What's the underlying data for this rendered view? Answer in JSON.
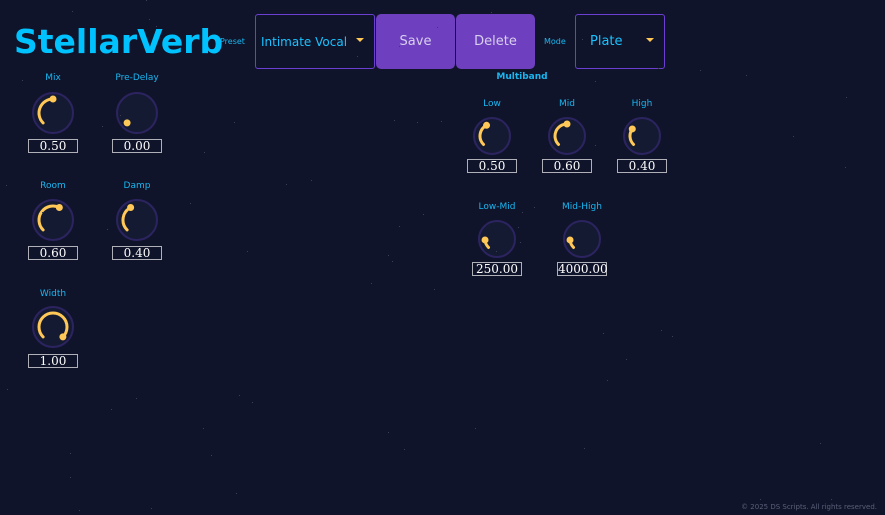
{
  "app_title": "StellarVerb",
  "header": {
    "preset_label": "Preset",
    "preset_value": "Intimate Vocal",
    "save_label": "Save",
    "delete_label": "Delete",
    "mode_label": "Mode",
    "mode_value": "Plate"
  },
  "colors": {
    "accent": "#00c2ff",
    "button": "#6e3fbf",
    "knob_arc": "#ffc857"
  },
  "knobs": [
    {
      "label": "Mix",
      "value": "0.50",
      "fill": 0.5
    },
    {
      "label": "Pre-Delay",
      "value": "0.00",
      "fill": 0.0
    },
    {
      "label": "Room",
      "value": "0.60",
      "fill": 0.6
    },
    {
      "label": "Damp",
      "value": "0.40",
      "fill": 0.4
    },
    {
      "label": "Width",
      "value": "1.00",
      "fill": 1.0
    }
  ],
  "multiband": {
    "title": "Multiband",
    "knobs": [
      {
        "label": "Low",
        "value": "0.50",
        "fill": 0.4
      },
      {
        "label": "Mid",
        "value": "0.60",
        "fill": 0.5
      },
      {
        "label": "High",
        "value": "0.40",
        "fill": 0.3
      },
      {
        "label": "Low-Mid",
        "value": "250.00",
        "fill": 0.15
      },
      {
        "label": "Mid-High",
        "value": "4000.00",
        "fill": 0.15
      }
    ]
  },
  "footer": "© 2025 DS Scripts. All rights reserved."
}
